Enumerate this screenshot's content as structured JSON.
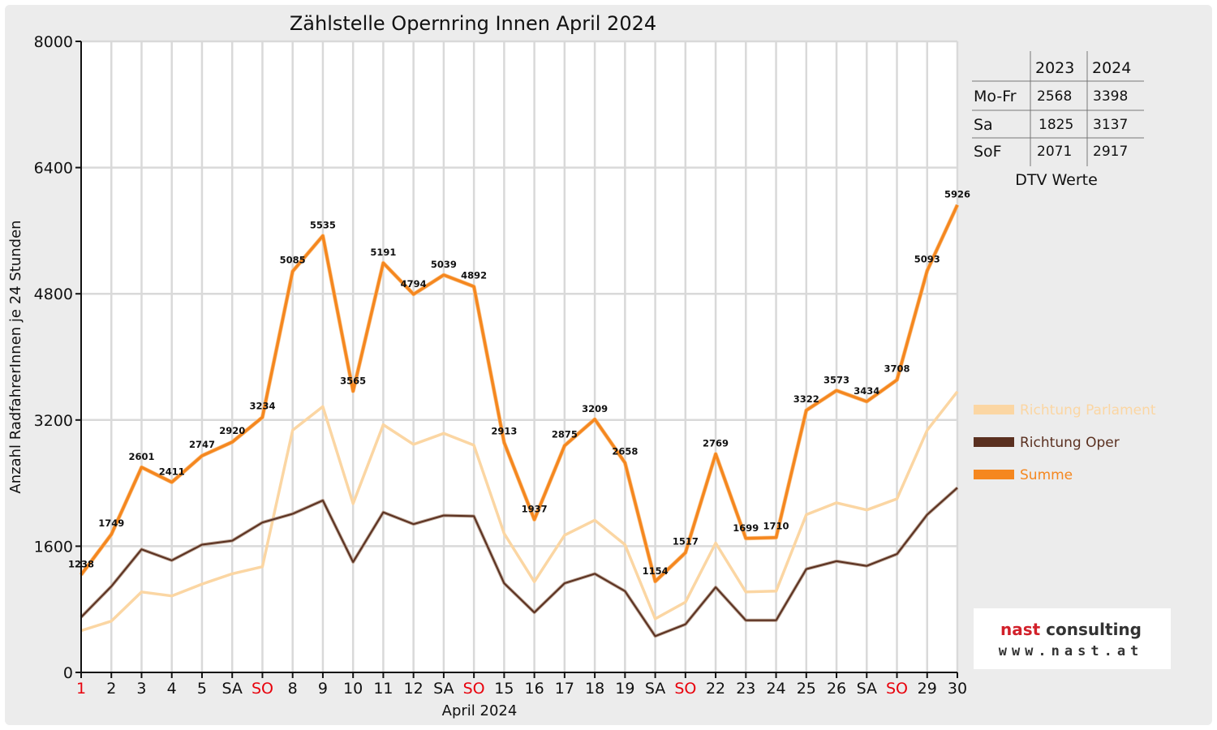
{
  "chart_data": {
    "type": "line",
    "title": "Zählstelle Opernring Innen April 2024",
    "xlabel": "April 2024",
    "ylabel": "Anzahl RadfahrerInnen je 24 Stunden",
    "ylim": [
      0,
      8000
    ],
    "yticks": [
      "0",
      "1600",
      "3200",
      "4800",
      "6400",
      "8000"
    ],
    "grid": true,
    "legend_position": "right",
    "categories": [
      "1",
      "2",
      "3",
      "4",
      "5",
      "SA",
      "SO",
      "8",
      "9",
      "10",
      "11",
      "12",
      "SA",
      "SO",
      "15",
      "16",
      "17",
      "18",
      "19",
      "SA",
      "SO",
      "22",
      "23",
      "24",
      "25",
      "26",
      "SA",
      "SO",
      "29",
      "30"
    ],
    "red_categories": [
      0,
      6,
      13,
      20,
      27
    ],
    "series": [
      {
        "name": "Richtung Parlament",
        "color": "#fbd6a3",
        "values": [
          530,
          650,
          1020,
          970,
          1120,
          1250,
          1340,
          3070,
          3370,
          2140,
          3140,
          2890,
          3030,
          2880,
          1760,
          1150,
          1740,
          1930,
          1620,
          680,
          890,
          1640,
          1020,
          1030,
          2000,
          2150,
          2060,
          2200,
          3070,
          3560
        ]
      },
      {
        "name": "Richtung Oper",
        "color": "#5a3020",
        "values": [
          700,
          1090,
          1560,
          1420,
          1620,
          1670,
          1900,
          2010,
          2180,
          1400,
          2030,
          1880,
          1990,
          1980,
          1130,
          760,
          1130,
          1250,
          1030,
          460,
          610,
          1080,
          660,
          660,
          1310,
          1410,
          1350,
          1500,
          2000,
          2340
        ]
      },
      {
        "name": "Summe",
        "color": "#f5871f",
        "values": [
          1238,
          1749,
          2601,
          2411,
          2747,
          2920,
          3234,
          5085,
          5535,
          3565,
          5191,
          4794,
          5039,
          4892,
          2913,
          1937,
          2875,
          3209,
          2658,
          1154,
          1517,
          2769,
          1699,
          1710,
          3322,
          3573,
          3434,
          3708,
          5093,
          5926
        ]
      }
    ],
    "data_labels": [
      "1238",
      "1749",
      "2601",
      "2411",
      "2747",
      "2920",
      "3234",
      "5085",
      "5535",
      "3565",
      "5191",
      "4794",
      "5039",
      "4892",
      "2913",
      "1937",
      "2875",
      "3209",
      "2658",
      "1154",
      "1517",
      "2769",
      "1699",
      "1710",
      "3322",
      "3573",
      "3434",
      "3708",
      "5093",
      "5926"
    ]
  },
  "dtv_table": {
    "caption": "DTV Werte",
    "years": [
      "2023",
      "2024"
    ],
    "rows": [
      {
        "label": "Mo-Fr",
        "v2023": "2568",
        "v2024": "3398"
      },
      {
        "label": "Sa",
        "v2023": "1825",
        "v2024": "3137"
      },
      {
        "label": "SoF",
        "v2023": "2071",
        "v2024": "2917"
      }
    ]
  },
  "logo": {
    "name": "nast consulting",
    "url": "www.nast.at"
  }
}
